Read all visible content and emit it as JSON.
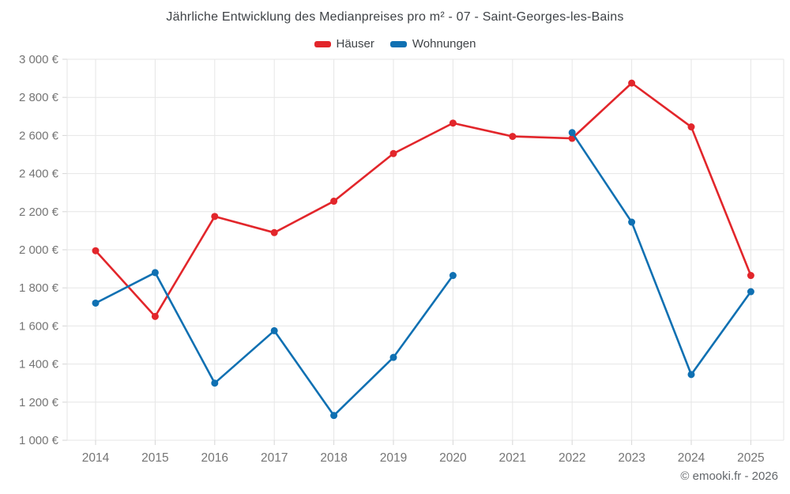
{
  "title": "Jährliche Entwicklung des Medianpreises pro m² - 07 - Saint-Georges-les-Bains",
  "legend": {
    "items": [
      {
        "label": "Häuser",
        "color": "#e2262b"
      },
      {
        "label": "Wohnungen",
        "color": "#0f70b2"
      }
    ]
  },
  "footer": {
    "credit": "© emooki.fr - 2026"
  },
  "colors": {
    "grid": "#e6e6e6",
    "tick": "#d6d6d6",
    "axis_label": "#757575"
  },
  "chart_data": {
    "type": "line",
    "title": "Jährliche Entwicklung des Medianpreises pro m² - 07 - Saint-Georges-les-Bains",
    "categories": [
      "2014",
      "2015",
      "2016",
      "2017",
      "2018",
      "2019",
      "2020",
      "2021",
      "2022",
      "2023",
      "2024",
      "2025"
    ],
    "series": [
      {
        "name": "Häuser",
        "color": "#e2262b",
        "values": [
          1995,
          1650,
          2175,
          2090,
          2255,
          2505,
          2665,
          2595,
          2585,
          2875,
          2645,
          1865
        ]
      },
      {
        "name": "Wohnungen",
        "color": "#0f70b2",
        "values": [
          1720,
          1880,
          1300,
          1575,
          1130,
          1435,
          1865,
          null,
          2615,
          2145,
          1345,
          1780
        ]
      }
    ],
    "xlabel": "",
    "ylabel": "",
    "ylim": [
      1000,
      3000
    ],
    "ytick_step": 200,
    "ytick_labels": [
      "1 000 €",
      "1 200 €",
      "1 400 €",
      "1 600 €",
      "1 800 €",
      "2 000 €",
      "2 200 €",
      "2 400 €",
      "2 600 €",
      "2 800 €",
      "3 000 €"
    ],
    "grid": true,
    "legend_position": "top",
    "marker_radius": 4.5,
    "line_width": 2.6
  }
}
